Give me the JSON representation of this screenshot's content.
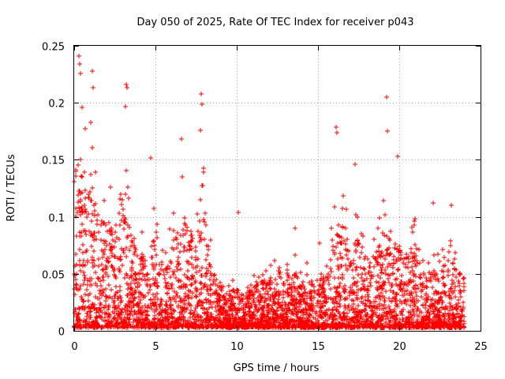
{
  "chart_data": {
    "type": "scatter",
    "title": "Day 050 of 2025, Rate Of TEC Index for receiver p043",
    "xlabel": "GPS time / hours",
    "ylabel": "ROTI / TECUs",
    "xlim": [
      0,
      25
    ],
    "ylim": [
      0,
      0.25
    ],
    "x_ticks": [
      0,
      5,
      10,
      15,
      20,
      25
    ],
    "y_ticks": [
      0,
      0.05,
      0.1,
      0.15,
      0.2,
      0.25
    ],
    "x_tick_labels": [
      "0",
      "5",
      "10",
      "15",
      "20",
      "25"
    ],
    "y_tick_labels": [
      "0",
      "0.05",
      "0.1",
      "0.15",
      "0.2",
      "0.25"
    ],
    "grid": true,
    "marker": "+",
    "marker_color": "#ff0000",
    "highlight_points": [
      {
        "x": 0.3,
        "y": 0.241
      },
      {
        "x": 0.35,
        "y": 0.234
      },
      {
        "x": 0.4,
        "y": 0.226
      },
      {
        "x": 0.5,
        "y": 0.196
      },
      {
        "x": 1.1,
        "y": 0.228
      },
      {
        "x": 1.15,
        "y": 0.213
      },
      {
        "x": 1.0,
        "y": 0.183
      },
      {
        "x": 3.2,
        "y": 0.216
      },
      {
        "x": 3.25,
        "y": 0.213
      },
      {
        "x": 3.15,
        "y": 0.197
      },
      {
        "x": 4.7,
        "y": 0.152
      },
      {
        "x": 6.6,
        "y": 0.168
      },
      {
        "x": 7.8,
        "y": 0.208
      },
      {
        "x": 7.85,
        "y": 0.199
      },
      {
        "x": 7.75,
        "y": 0.176
      },
      {
        "x": 10.1,
        "y": 0.104
      },
      {
        "x": 13.6,
        "y": 0.09
      },
      {
        "x": 15.1,
        "y": 0.077
      },
      {
        "x": 16.1,
        "y": 0.179
      },
      {
        "x": 16.15,
        "y": 0.174
      },
      {
        "x": 17.3,
        "y": 0.146
      },
      {
        "x": 19.2,
        "y": 0.205
      },
      {
        "x": 19.25,
        "y": 0.175
      },
      {
        "x": 19.9,
        "y": 0.153
      },
      {
        "x": 22.1,
        "y": 0.112
      },
      {
        "x": 23.2,
        "y": 0.11
      }
    ],
    "envelope": {
      "hours": [
        0,
        0.5,
        1,
        1.5,
        2,
        2.5,
        3,
        3.5,
        4,
        4.5,
        5,
        5.5,
        6,
        6.5,
        7,
        7.5,
        8,
        8.5,
        9,
        9.5,
        10,
        10.5,
        11,
        11.5,
        12,
        12.5,
        13,
        13.5,
        14,
        14.5,
        15,
        15.5,
        16,
        16.5,
        17,
        17.5,
        18,
        18.5,
        19,
        19.5,
        20,
        20.5,
        21,
        21.5,
        22,
        22.5,
        23,
        23.5,
        24
      ],
      "typical_max": [
        0.1,
        0.14,
        0.12,
        0.11,
        0.09,
        0.1,
        0.12,
        0.08,
        0.07,
        0.06,
        0.09,
        0.05,
        0.07,
        0.1,
        0.09,
        0.08,
        0.11,
        0.05,
        0.04,
        0.03,
        0.035,
        0.03,
        0.035,
        0.04,
        0.045,
        0.045,
        0.045,
        0.05,
        0.04,
        0.045,
        0.05,
        0.045,
        0.08,
        0.09,
        0.07,
        0.08,
        0.06,
        0.07,
        0.09,
        0.08,
        0.07,
        0.06,
        0.08,
        0.05,
        0.05,
        0.05,
        0.06,
        0.05,
        0.05
      ]
    }
  }
}
